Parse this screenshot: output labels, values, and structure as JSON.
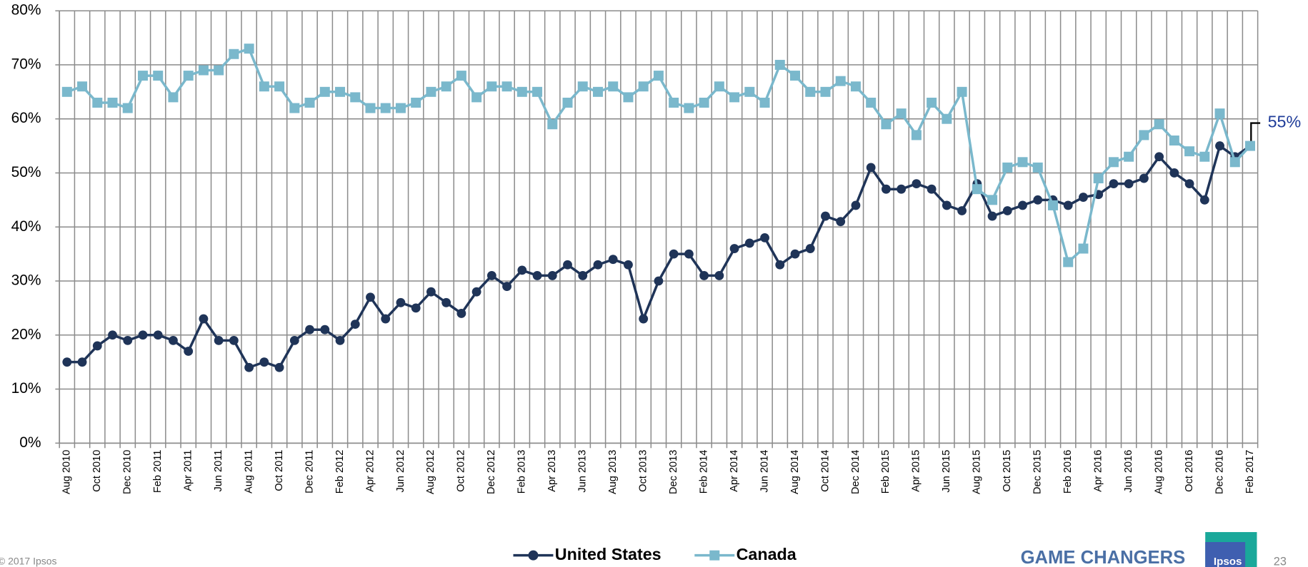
{
  "chart_data": {
    "type": "line",
    "categories": [
      "Aug 2010",
      null,
      "Oct 2010",
      null,
      "Dec 2010",
      null,
      "Feb 2011",
      null,
      "Apr 2011",
      null,
      "Jun 2011",
      null,
      "Aug 2011",
      null,
      "Oct 2011",
      null,
      "Dec 2011",
      null,
      "Feb 2012",
      null,
      "Apr 2012",
      null,
      "Jun 2012",
      null,
      "Aug 2012",
      null,
      "Oct 2012",
      null,
      "Dec 2012",
      null,
      "Feb 2013",
      null,
      "Apr 2013",
      null,
      "Jun 2013",
      null,
      "Aug 2013",
      null,
      "Oct  2013",
      null,
      "Dec 2013",
      null,
      "Feb 2014",
      null,
      "Apr 2014",
      null,
      "Jun 2014",
      null,
      "Aug 2014",
      null,
      "Oct 2014",
      null,
      "Dec 2014",
      null,
      "Feb 2015",
      null,
      "Apr 2015",
      null,
      "Jun 2015",
      null,
      "Aug 2015",
      null,
      "Oct 2015",
      null,
      "Dec 2015",
      null,
      "Feb 2016",
      null,
      "Apr 2016",
      null,
      "Jun 2016",
      null,
      "Aug 2016",
      null,
      "Oct 2016",
      null,
      "Dec 2016",
      null,
      "Feb 2017"
    ],
    "series": [
      {
        "name": "United States",
        "color": "#1f3458",
        "marker": "circle",
        "values": [
          15,
          15,
          18,
          20,
          19,
          20,
          20,
          19,
          17,
          23,
          19,
          19,
          14,
          15,
          14,
          19,
          21,
          21,
          19,
          22,
          27,
          23,
          26,
          25,
          28,
          26,
          24,
          28,
          31,
          29,
          32,
          31,
          31,
          33,
          31,
          33,
          34,
          33,
          23,
          30,
          35,
          35,
          31,
          31,
          36,
          37,
          38,
          33,
          35,
          36,
          42,
          41,
          44,
          51,
          47,
          47,
          48,
          47,
          44,
          43,
          48,
          42,
          43,
          44,
          45,
          45,
          44,
          45.5,
          46,
          48,
          48,
          49,
          53,
          50,
          48,
          45,
          55,
          53,
          55
        ]
      },
      {
        "name": "Canada",
        "color": "#7ab8cc",
        "marker": "square",
        "values": [
          65,
          66,
          63,
          63,
          62,
          68,
          68,
          64,
          68,
          69,
          69,
          72,
          73,
          66,
          66,
          62,
          63,
          65,
          65,
          64,
          62,
          62,
          62,
          63,
          65,
          66,
          68,
          64,
          66,
          66,
          65,
          65,
          59,
          63,
          66,
          65,
          66,
          64,
          66,
          68,
          63,
          62,
          63,
          66,
          64,
          65,
          63,
          70,
          68,
          65,
          65,
          67,
          66,
          63,
          59,
          61,
          57,
          63,
          60,
          65,
          47,
          45,
          51,
          52,
          51,
          44,
          33.5,
          36,
          49,
          52,
          53,
          57,
          59,
          56,
          54,
          53,
          61,
          52,
          55
        ]
      }
    ],
    "annotation": "55%",
    "ylim": [
      0,
      80
    ],
    "yticks": [
      {
        "value": 0,
        "label": "0%"
      },
      {
        "value": 10,
        "label": "10%"
      },
      {
        "value": 20,
        "label": "20%"
      },
      {
        "value": 30,
        "label": "30%"
      },
      {
        "value": 40,
        "label": "40%"
      },
      {
        "value": 50,
        "label": "50%"
      },
      {
        "value": 60,
        "label": "60%"
      },
      {
        "value": 70,
        "label": "70%"
      },
      {
        "value": 80,
        "label": "80%"
      }
    ],
    "grid": true,
    "legend": "bottom"
  },
  "footer": {
    "copyright": "© 2017 Ipsos",
    "brand": "GAME CHANGERS",
    "logo": "Ipsos",
    "page": "23"
  }
}
